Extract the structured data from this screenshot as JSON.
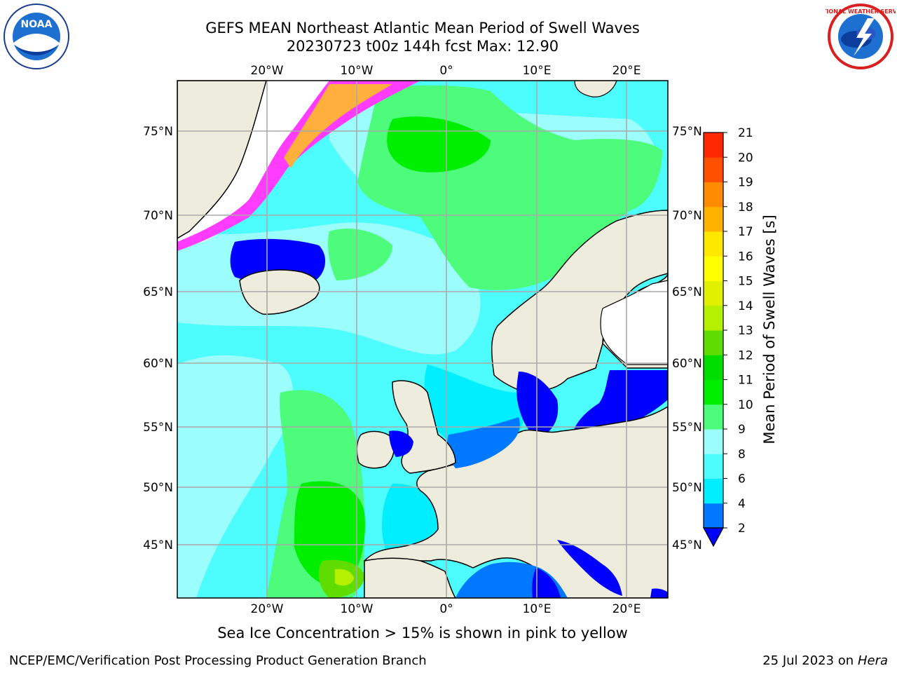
{
  "title": {
    "line1": "GEFS MEAN Northeast Atlantic Mean Period of Swell Waves",
    "line2": "20230723 t00z 144h fcst   Max: 12.90"
  },
  "caption": "Sea Ice Concentration > 15% is shown in pink to yellow",
  "footer": {
    "left": "NCEP/EMC/Verification Post Processing Product Generation Branch",
    "right_date": "25 Jul 2023 on ",
    "right_host": "Hera"
  },
  "logos": {
    "left": "NOAA",
    "right_top": "NATIONAL WEATHER SERVICE"
  },
  "map": {
    "lon_labels": [
      "20°W",
      "10°W",
      "0°",
      "10°E",
      "20°E"
    ],
    "lat_labels": [
      "75°N",
      "70°N",
      "65°N",
      "60°N",
      "55°N",
      "50°N",
      "45°N"
    ],
    "colors": {
      "land": "#eeecdd",
      "ocean_8_9": "#9cfdfd",
      "ocean_6_8": "#4dfcfc",
      "ocean_4_6": "#00eeff",
      "ocean_2_4": "#0078ff",
      "ocean_lt2": "#0000ff",
      "swell_9_10": "#4dfc7a",
      "swell_10_11": "#00ee00",
      "swell_11_12": "#5fdd00",
      "swell_12_13": "#b4f000",
      "ice_pink": "#ff3cff",
      "ice_orange": "#ffb03c",
      "grid": "#aaaaaa"
    }
  },
  "colorbar": {
    "label": "Mean Period of Swell Waves [s]",
    "ticks": [
      "2",
      "4",
      "6",
      "8",
      "9",
      "10",
      "11",
      "12",
      "13",
      "14",
      "15",
      "16",
      "17",
      "18",
      "19",
      "20",
      "21"
    ],
    "colors": [
      "#0078ff",
      "#00eeff",
      "#4dfcfc",
      "#9cfdfd",
      "#4dfc7a",
      "#00ee00",
      "#00dd00",
      "#5fdd00",
      "#b4f000",
      "#e0f000",
      "#ffff00",
      "#ffe800",
      "#ffb300",
      "#ff8c00",
      "#ff5000",
      "#ff2800"
    ],
    "extend_color": "#0000ff"
  }
}
